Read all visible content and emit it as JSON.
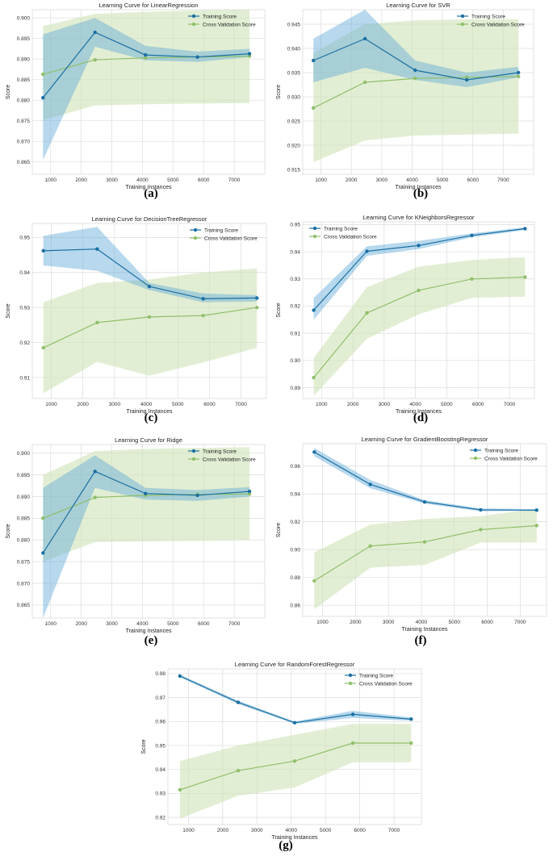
{
  "palette": {
    "train": "#1a6fa3",
    "train_band": "#5fa8d8",
    "cv": "#8fbf6a",
    "cv_band": "#cfe2b6",
    "grid": "#dcdcdc",
    "plot_bg": "#ffffff",
    "frame": "#cccccc"
  },
  "legend_labels": {
    "train": "Training Score",
    "cv": "Cross Validation Score"
  },
  "chart_data": [
    {
      "type": "line",
      "panel": "(a)",
      "title": "Learning Curve for LinearRegression",
      "xlabel": "Training Instances",
      "ylabel": "Score",
      "xlim": [
        400,
        8000
      ],
      "ylim": [
        0.862,
        0.902
      ],
      "xticks": [
        1000,
        2000,
        3000,
        4000,
        5000,
        6000,
        7000
      ],
      "xtick_labels": [
        "1000",
        "2000",
        "3000",
        "4000",
        "5000",
        "6000",
        "7000"
      ],
      "yticks": [
        0.865,
        0.87,
        0.875,
        0.88,
        0.885,
        0.89,
        0.895,
        0.9
      ],
      "ytick_labels": [
        "0.865",
        "0.870",
        "0.875",
        "0.880",
        "0.885",
        "0.890",
        "0.895",
        "0.900"
      ],
      "legend": "top-right",
      "x": [
        750,
        2450,
        4100,
        5800,
        7500
      ],
      "series": [
        {
          "name": "Training Score",
          "values": [
            0.8806,
            0.8965,
            0.891,
            0.8905,
            0.8913
          ],
          "band_low": [
            0.8655,
            0.893,
            0.8897,
            0.8893,
            0.8905
          ],
          "band_high": [
            0.896,
            0.9,
            0.8932,
            0.8918,
            0.8925
          ]
        },
        {
          "name": "Cross Validation Score",
          "values": [
            0.8863,
            0.8898,
            0.8903,
            0.8905,
            0.8907
          ],
          "band_low": [
            0.8752,
            0.8787,
            0.879,
            0.8792,
            0.8793
          ],
          "band_high": [
            0.898,
            0.901,
            0.9015,
            0.9018,
            0.902
          ]
        }
      ]
    },
    {
      "type": "line",
      "panel": "(b)",
      "title": "Learning Curve for SVR",
      "xlabel": "Training Instances",
      "ylabel": "Score",
      "xlim": [
        400,
        8000
      ],
      "ylim": [
        0.914,
        0.948
      ],
      "xticks": [
        1000,
        2000,
        3000,
        4000,
        5000,
        6000,
        7000
      ],
      "xtick_labels": [
        "1000",
        "2000",
        "3000",
        "4000",
        "5000",
        "6000",
        "7000"
      ],
      "yticks": [
        0.915,
        0.92,
        0.925,
        0.93,
        0.935,
        0.94,
        0.945
      ],
      "ytick_labels": [
        "0.915",
        "0.920",
        "0.925",
        "0.930",
        "0.935",
        "0.940",
        "0.945"
      ],
      "legend": "top-right",
      "x": [
        750,
        2450,
        4100,
        5800,
        7500
      ],
      "series": [
        {
          "name": "Training Score",
          "values": [
            0.9375,
            0.942,
            0.9355,
            0.9335,
            0.935
          ],
          "band_low": [
            0.933,
            0.936,
            0.9335,
            0.932,
            0.934
          ],
          "band_high": [
            0.942,
            0.948,
            0.9375,
            0.935,
            0.9362
          ]
        },
        {
          "name": "Cross Validation Score",
          "values": [
            0.9277,
            0.933,
            0.9338,
            0.934,
            0.9342
          ],
          "band_low": [
            0.9165,
            0.921,
            0.922,
            0.9222,
            0.9224
          ],
          "band_high": [
            0.939,
            0.945,
            0.9458,
            0.946,
            0.946
          ]
        }
      ]
    },
    {
      "type": "line",
      "panel": "(c)",
      "title": "Learning Curve for DecisionTreeRegressor",
      "xlabel": "Training Instances",
      "ylabel": "Score",
      "xlim": [
        400,
        7800
      ],
      "ylim": [
        0.904,
        0.954
      ],
      "xticks": [
        1000,
        2000,
        3000,
        4000,
        5000,
        6000,
        7000
      ],
      "xtick_labels": [
        "1000",
        "2000",
        "3000",
        "4000",
        "5000",
        "6000",
        "7000"
      ],
      "yticks": [
        0.91,
        0.92,
        0.93,
        0.94,
        0.95
      ],
      "ytick_labels": [
        "0.91",
        "0.92",
        "0.93",
        "0.94",
        "0.95"
      ],
      "legend": "top-right",
      "x": [
        750,
        2450,
        4100,
        5800,
        7500
      ],
      "series": [
        {
          "name": "Training Score",
          "values": [
            0.9462,
            0.9467,
            0.936,
            0.9325,
            0.9327
          ],
          "band_low": [
            0.942,
            0.9405,
            0.935,
            0.9315,
            0.9317
          ],
          "band_high": [
            0.9505,
            0.953,
            0.937,
            0.934,
            0.9335
          ]
        },
        {
          "name": "Cross Validation Score",
          "values": [
            0.9185,
            0.9257,
            0.9273,
            0.9277,
            0.93
          ],
          "band_low": [
            0.9055,
            0.9145,
            0.9105,
            0.9143,
            0.9185
          ],
          "band_high": [
            0.9315,
            0.937,
            0.938,
            0.94,
            0.9412
          ]
        }
      ]
    },
    {
      "type": "line",
      "panel": "(d)",
      "title": "Learning Curve for KNeighborsRegressor",
      "xlabel": "Training Instances",
      "ylabel": "Score",
      "xlim": [
        400,
        7800
      ],
      "ylim": [
        0.886,
        0.951
      ],
      "xticks": [
        1000,
        2000,
        3000,
        4000,
        5000,
        6000,
        7000
      ],
      "xtick_labels": [
        "1000",
        "2000",
        "3000",
        "4000",
        "5000",
        "6000",
        "7000"
      ],
      "yticks": [
        0.89,
        0.9,
        0.91,
        0.92,
        0.93,
        0.94,
        0.95
      ],
      "ytick_labels": [
        "0.89",
        "0.90",
        "0.91",
        "0.92",
        "0.93",
        "0.94",
        "0.95"
      ],
      "legend": "top-left",
      "x": [
        750,
        2450,
        4100,
        5800,
        7500
      ],
      "series": [
        {
          "name": "Training Score",
          "values": [
            0.9185,
            0.9402,
            0.9423,
            0.946,
            0.9485
          ],
          "band_low": [
            0.915,
            0.9385,
            0.941,
            0.9453,
            0.948
          ],
          "band_high": [
            0.923,
            0.942,
            0.944,
            0.9468,
            0.949
          ]
        },
        {
          "name": "Cross Validation Score",
          "values": [
            0.8937,
            0.9175,
            0.9258,
            0.93,
            0.9307
          ],
          "band_low": [
            0.887,
            0.908,
            0.917,
            0.923,
            0.9235
          ],
          "band_high": [
            0.901,
            0.927,
            0.9345,
            0.937,
            0.938
          ]
        }
      ]
    },
    {
      "type": "line",
      "panel": "(e)",
      "title": "Learning Curve for Ridge",
      "xlabel": "Training Instances",
      "ylabel": "Score",
      "xlim": [
        400,
        8000
      ],
      "ylim": [
        0.862,
        0.902
      ],
      "xticks": [
        1000,
        2000,
        3000,
        4000,
        5000,
        6000,
        7000
      ],
      "xtick_labels": [
        "1000",
        "2000",
        "3000",
        "4000",
        "5000",
        "6000",
        "7000"
      ],
      "yticks": [
        0.865,
        0.87,
        0.875,
        0.88,
        0.885,
        0.89,
        0.895,
        0.9
      ],
      "ytick_labels": [
        "0.865",
        "0.870",
        "0.875",
        "0.880",
        "0.885",
        "0.890",
        "0.895",
        "0.900"
      ],
      "legend": "top-right",
      "x": [
        750,
        2450,
        4100,
        5800,
        7500
      ],
      "series": [
        {
          "name": "Training Score",
          "values": [
            0.877,
            0.8958,
            0.8907,
            0.8903,
            0.8912
          ],
          "band_low": [
            0.862,
            0.892,
            0.8893,
            0.889,
            0.89
          ],
          "band_high": [
            0.892,
            0.8995,
            0.892,
            0.8915,
            0.8922
          ]
        },
        {
          "name": "Cross Validation Score",
          "values": [
            0.885,
            0.8898,
            0.8903,
            0.8905,
            0.8906
          ],
          "band_low": [
            0.875,
            0.8795,
            0.8797,
            0.8798,
            0.88
          ],
          "band_high": [
            0.895,
            0.9005,
            0.901,
            0.9012,
            0.9014
          ]
        }
      ]
    },
    {
      "type": "line",
      "panel": "(f)",
      "title": "Learning Curve for GradientBoostingRegressor",
      "xlabel": "Training Instances",
      "ylabel": "Score",
      "xlim": [
        400,
        7800
      ],
      "ylim": [
        0.852,
        0.976
      ],
      "xticks": [
        1000,
        2000,
        3000,
        4000,
        5000,
        6000,
        7000
      ],
      "xtick_labels": [
        "1000",
        "2000",
        "3000",
        "4000",
        "5000",
        "6000",
        "7000"
      ],
      "yticks": [
        0.86,
        0.88,
        0.9,
        0.92,
        0.94,
        0.96
      ],
      "ytick_labels": [
        "0.86",
        "0.88",
        "0.90",
        "0.92",
        "0.94",
        "0.96"
      ],
      "legend": "top-right",
      "x": [
        750,
        2450,
        4100,
        5800,
        7500
      ],
      "series": [
        {
          "name": "Training Score",
          "values": [
            0.97,
            0.9468,
            0.9342,
            0.9285,
            0.9283
          ],
          "band_low": [
            0.967,
            0.944,
            0.933,
            0.9275,
            0.9278
          ],
          "band_high": [
            0.973,
            0.95,
            0.9355,
            0.9295,
            0.929
          ]
        },
        {
          "name": "Cross Validation Score",
          "values": [
            0.8775,
            0.9025,
            0.9055,
            0.9143,
            0.9172
          ],
          "band_low": [
            0.857,
            0.887,
            0.889,
            0.905,
            0.905
          ],
          "band_high": [
            0.898,
            0.918,
            0.922,
            0.924,
            0.9292
          ]
        }
      ]
    },
    {
      "type": "line",
      "panel": "(g)",
      "title": "Learning Curve for RandomForestRegressor",
      "xlabel": "Training Instances",
      "ylabel": "Score",
      "xlim": [
        400,
        7800
      ],
      "ylim": [
        0.917,
        0.982
      ],
      "xticks": [
        1000,
        2000,
        3000,
        4000,
        5000,
        6000,
        7000
      ],
      "xtick_labels": [
        "1000",
        "2000",
        "3000",
        "4000",
        "5000",
        "6000",
        "7000"
      ],
      "yticks": [
        0.92,
        0.93,
        0.94,
        0.95,
        0.96,
        0.97,
        0.98
      ],
      "ytick_labels": [
        "0.92",
        "0.93",
        "0.94",
        "0.95",
        "0.96",
        "0.97",
        "0.98"
      ],
      "legend": "top-right",
      "x": [
        750,
        2450,
        4100,
        5800,
        7500
      ],
      "series": [
        {
          "name": "Training Score",
          "values": [
            0.979,
            0.968,
            0.9595,
            0.963,
            0.961
          ],
          "band_low": [
            0.9785,
            0.9673,
            0.959,
            0.9615,
            0.9603
          ],
          "band_high": [
            0.9795,
            0.9687,
            0.96,
            0.9645,
            0.9617
          ]
        },
        {
          "name": "Cross Validation Score",
          "values": [
            0.9315,
            0.9395,
            0.9435,
            0.951,
            0.951
          ],
          "band_low": [
            0.9195,
            0.929,
            0.9325,
            0.943,
            0.943
          ],
          "band_high": [
            0.9435,
            0.95,
            0.9545,
            0.959,
            0.959
          ]
        }
      ]
    }
  ],
  "panel_labels": [
    "(a)",
    "(b)",
    "(c)",
    "(d)",
    "(e)",
    "(f)",
    "(g)"
  ]
}
